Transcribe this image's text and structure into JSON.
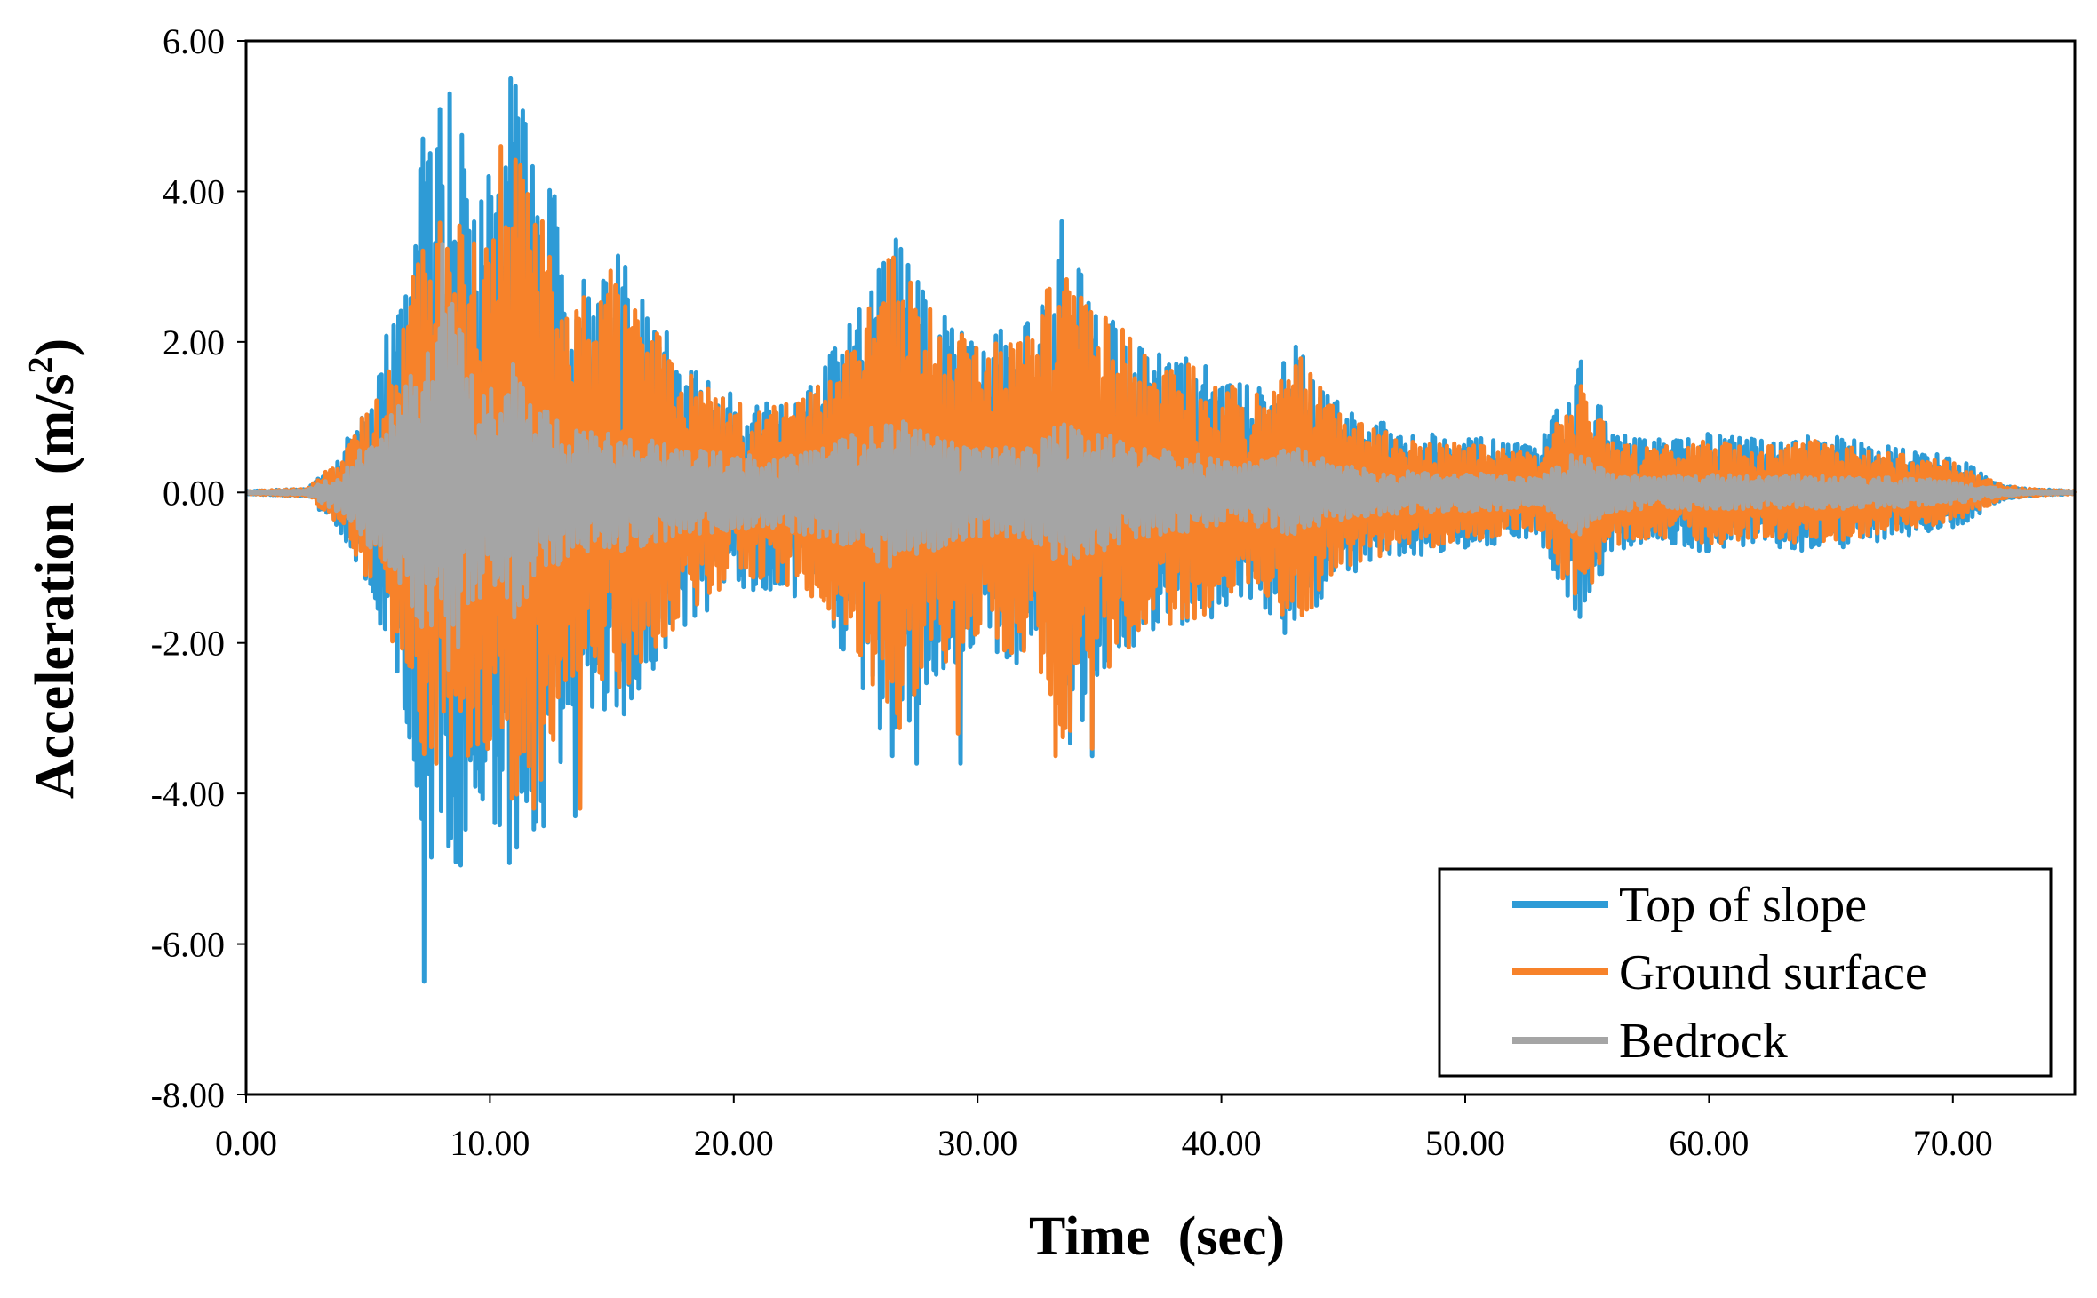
{
  "chart_data": {
    "type": "line",
    "title": "",
    "xlabel": "Time  (sec)",
    "ylabel_main": "Acceleration  (m/s",
    "ylabel_sup": "2",
    "ylabel_close": ")",
    "xlim": [
      0,
      75
    ],
    "ylim": [
      -8,
      6
    ],
    "xticks": [
      0,
      10,
      20,
      30,
      40,
      50,
      60,
      70
    ],
    "xtick_labels": [
      "0.00",
      "10.00",
      "20.00",
      "30.00",
      "40.00",
      "50.00",
      "60.00",
      "70.00"
    ],
    "yticks": [
      6,
      4,
      2,
      0,
      -2,
      -4,
      -6,
      -8
    ],
    "ytick_labels": [
      "6.00",
      "4.00",
      "2.00",
      "0.00",
      "-2.00",
      "-4.00",
      "-6.00",
      "-8.00"
    ],
    "grid": false,
    "legend_position": "bottom-right",
    "series": [
      {
        "name": "Top of slope",
        "color": "#2e9bd6",
        "envelope_t": [
          0,
          2.5,
          4,
          5.5,
          6.5,
          7.5,
          8.5,
          9.5,
          10.5,
          11,
          12,
          13,
          14,
          15,
          16.5,
          18,
          20,
          22,
          23.5,
          25,
          26.5,
          28,
          29,
          30,
          31,
          32.5,
          33.5,
          35,
          37,
          39,
          41,
          43,
          45,
          47,
          49,
          51,
          53,
          54.7,
          56,
          58,
          60,
          62,
          64,
          66,
          68,
          70,
          72,
          73,
          75
        ],
        "envelope_a": [
          0.02,
          0.05,
          0.6,
          1.8,
          3.0,
          5.2,
          5.3,
          4.2,
          4.7,
          5.5,
          5.0,
          3.5,
          3.0,
          3.3,
          2.5,
          1.8,
          1.3,
          1.3,
          1.6,
          2.4,
          3.6,
          2.6,
          2.3,
          2.0,
          2.2,
          2.4,
          3.6,
          2.6,
          1.9,
          1.8,
          1.4,
          2.0,
          1.1,
          0.9,
          0.8,
          0.7,
          0.6,
          1.8,
          0.8,
          0.7,
          0.8,
          0.7,
          0.8,
          0.7,
          0.6,
          0.5,
          0.1,
          0.05,
          0.02
        ],
        "peaks": [
          {
            "t": 7.3,
            "a": -6.5
          },
          {
            "t": 7.2,
            "a": 4.7
          },
          {
            "t": 8.3,
            "a": 5.3
          },
          {
            "t": 10.9,
            "a": 5.5
          },
          {
            "t": 8.3,
            "a": -4.7
          },
          {
            "t": 11.5,
            "a": -4.1
          },
          {
            "t": 13.5,
            "a": -4.3
          },
          {
            "t": 27.5,
            "a": -3.6
          },
          {
            "t": 29.3,
            "a": -3.6
          },
          {
            "t": 33.5,
            "a": 3.6
          },
          {
            "t": 34.7,
            "a": -3.5
          }
        ]
      },
      {
        "name": "Ground surface",
        "color": "#f7822a",
        "envelope_t": [
          0,
          2.5,
          4,
          5.5,
          6.5,
          7.5,
          8.5,
          9.5,
          10.5,
          11,
          12,
          13,
          14,
          15,
          16.5,
          18,
          20,
          22,
          23.5,
          25,
          26.5,
          28,
          29,
          30,
          31,
          32.5,
          33.5,
          35,
          37,
          39,
          41,
          43,
          45,
          47,
          49,
          51,
          53,
          54.7,
          56,
          58,
          60,
          62,
          64,
          66,
          68,
          70,
          72,
          73,
          75
        ],
        "envelope_a": [
          0.02,
          0.05,
          0.5,
          1.5,
          2.5,
          3.8,
          3.6,
          3.5,
          3.7,
          4.7,
          4.0,
          3.0,
          2.7,
          3.0,
          2.3,
          1.6,
          1.2,
          1.2,
          1.5,
          2.2,
          3.4,
          2.5,
          2.2,
          1.9,
          2.1,
          2.3,
          3.4,
          2.5,
          1.8,
          1.7,
          1.3,
          1.9,
          1.0,
          0.8,
          0.7,
          0.6,
          0.5,
          1.6,
          0.7,
          0.6,
          0.7,
          0.6,
          0.7,
          0.6,
          0.5,
          0.4,
          0.1,
          0.05,
          0.02
        ],
        "peaks": [
          {
            "t": 7.8,
            "a": -3.6
          },
          {
            "t": 10.5,
            "a": 4.6
          },
          {
            "t": 11.8,
            "a": -4.2
          },
          {
            "t": 13.7,
            "a": -4.2
          },
          {
            "t": 33.2,
            "a": -3.5
          },
          {
            "t": 34.7,
            "a": -3.4
          },
          {
            "t": 29.2,
            "a": -3.2
          }
        ]
      },
      {
        "name": "Bedrock",
        "color": "#a5a5a5",
        "envelope_t": [
          0,
          2.5,
          4,
          5.5,
          6.5,
          7.5,
          8.5,
          9.5,
          10.5,
          11,
          12,
          13,
          14,
          15,
          16.5,
          18,
          20,
          22,
          23.5,
          25,
          26.5,
          28,
          29,
          30,
          31,
          32.5,
          33.5,
          35,
          37,
          39,
          41,
          43,
          45,
          47,
          49,
          51,
          53,
          54.7,
          56,
          58,
          60,
          62,
          64,
          66,
          68,
          70,
          72,
          73,
          75
        ],
        "envelope_a": [
          0.01,
          0.03,
          0.3,
          0.9,
          1.4,
          2.0,
          2.6,
          1.5,
          1.3,
          1.7,
          1.2,
          0.9,
          0.8,
          0.8,
          0.7,
          0.6,
          0.5,
          0.5,
          0.6,
          0.8,
          1.0,
          0.8,
          0.7,
          0.6,
          0.6,
          0.7,
          1.0,
          0.8,
          0.6,
          0.5,
          0.4,
          0.6,
          0.35,
          0.3,
          0.25,
          0.25,
          0.2,
          0.6,
          0.25,
          0.2,
          0.25,
          0.2,
          0.25,
          0.2,
          0.2,
          0.15,
          0.05,
          0.02,
          0.01
        ],
        "peaks": [
          {
            "t": 8.0,
            "a": 3.3
          },
          {
            "t": 8.0,
            "a": -1.4
          },
          {
            "t": 11.0,
            "a": 1.7
          }
        ]
      }
    ]
  }
}
